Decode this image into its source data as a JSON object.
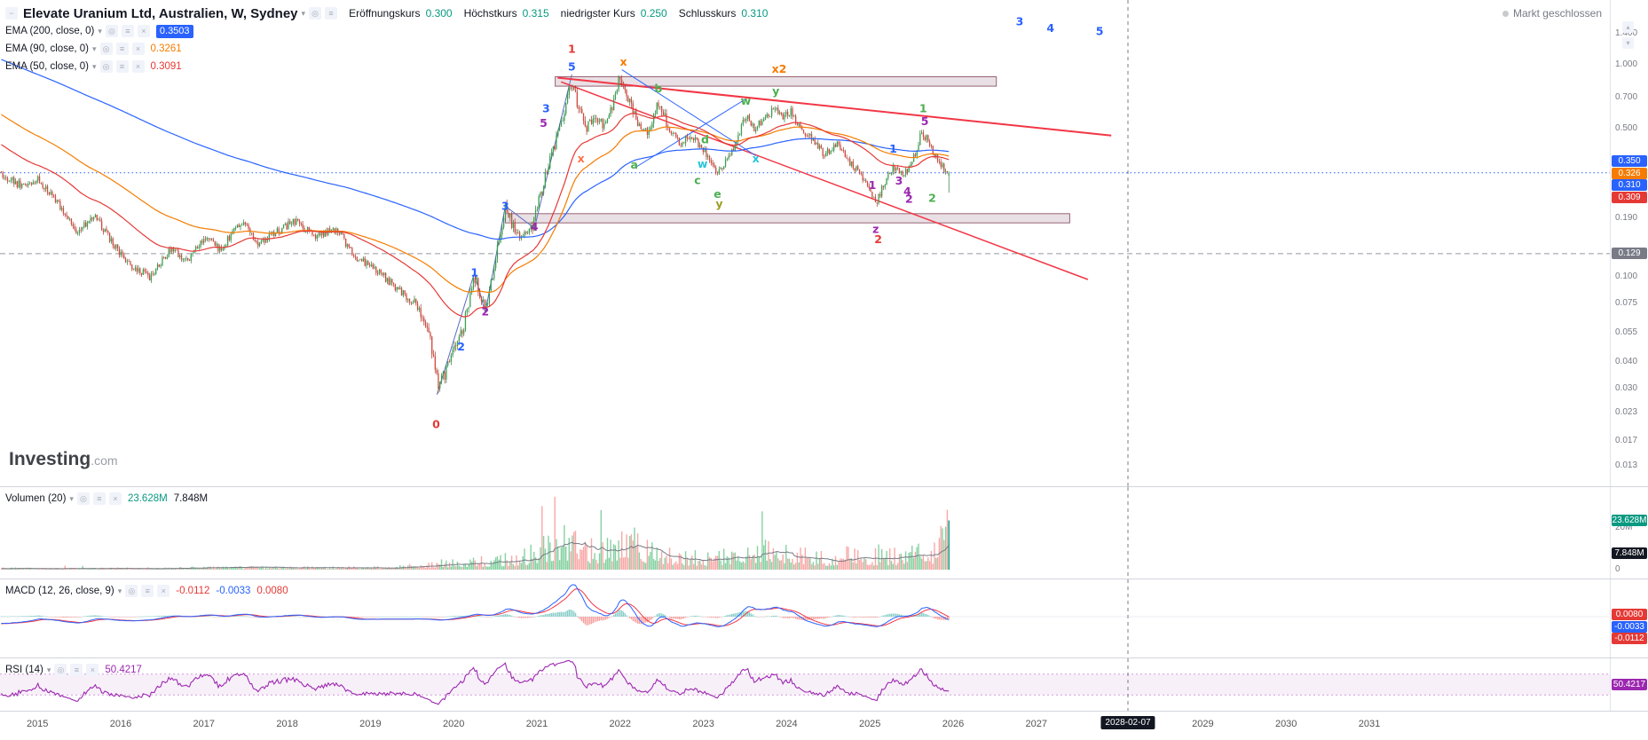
{
  "header": {
    "symbol_title": "Elevate Uranium Ltd, Australien, W, Sydney",
    "ohlc": [
      {
        "label": "Eröffnungskurs",
        "value": "0.300"
      },
      {
        "label": "Höchstkurs",
        "value": "0.315"
      },
      {
        "label": "niedrigster Kurs",
        "value": "0.250"
      },
      {
        "label": "Schlusskurs",
        "value": "0.310"
      }
    ],
    "value_color": "#089981",
    "market_status": "Markt geschlossen"
  },
  "legends": {
    "ema200": {
      "label": "EMA (200, close, 0)",
      "value": "0.3503",
      "color": "#2962ff"
    },
    "ema90": {
      "label": "EMA (90, close, 0)",
      "value": "0.3261",
      "color": "#f57c00"
    },
    "ema50": {
      "label": "EMA (50, close, 0)",
      "value": "0.3091",
      "color": "#e53935"
    },
    "volume": {
      "label": "Volumen (20)",
      "values": [
        {
          "text": "23.628M",
          "color": "#089981"
        },
        {
          "text": "7.848M",
          "color": "#131722"
        }
      ]
    },
    "macd": {
      "label": "MACD (12, 26, close, 9)",
      "values": [
        {
          "text": "-0.0112",
          "color": "#e53935"
        },
        {
          "text": "-0.0033",
          "color": "#2962ff"
        },
        {
          "text": "0.0080",
          "color": "#e53935"
        }
      ]
    },
    "rsi": {
      "label": "RSI (14)",
      "value": "50.4217",
      "color": "#9c27b0"
    }
  },
  "watermark": {
    "main": "Investing",
    "suffix": ".com"
  },
  "axes": {
    "price_ticks": [
      "1.400",
      "1.000",
      "0.700",
      "0.500",
      "0.190",
      "0.100",
      "0.075",
      "0.055",
      "0.040",
      "0.030",
      "0.023",
      "0.017",
      "0.013"
    ],
    "price_badges": [
      {
        "text": "0.350",
        "price": 0.3503,
        "color": "#2962ff"
      },
      {
        "text": "0.326",
        "price": 0.3261,
        "color": "#f57c00"
      },
      {
        "text": "0.310",
        "price": 0.31,
        "color": "#2962ff"
      },
      {
        "text": "0.309",
        "price": 0.3091,
        "color": "#e53935"
      },
      {
        "text": "0.129",
        "price": 0.129,
        "color": "#787b86"
      }
    ],
    "volume_ticks": [
      {
        "text": "20M",
        "value": 20
      },
      {
        "text": "0",
        "value": 0
      }
    ],
    "volume_badges": [
      {
        "text": "23.628M",
        "value": 23.628,
        "color": "#089981"
      },
      {
        "text": "7.848M",
        "value": 7.848,
        "color": "#131722"
      }
    ],
    "macd_badges": [
      {
        "text": "0.0080",
        "value": 0.008,
        "color": "#e53935"
      },
      {
        "text": "-0.0033",
        "value": -0.0033,
        "color": "#2962ff"
      },
      {
        "text": "-0.0112",
        "value": -0.0112,
        "color": "#e53935"
      }
    ],
    "rsi_badge": {
      "text": "50.4217",
      "value": 50.4217,
      "color": "#9c27b0"
    },
    "time_ticks": [
      "2015",
      "2016",
      "2017",
      "2018",
      "2019",
      "2020",
      "2021",
      "2022",
      "2023",
      "2024",
      "2025",
      "2026",
      "2027",
      "2029",
      "2030",
      "2031"
    ],
    "time_badge": {
      "text": "2028-02-07",
      "t": 2028.1
    }
  },
  "chart_data": {
    "type": "candlestick",
    "interval": "W",
    "scale": "log",
    "time_range": [
      2014.55,
      2033.9
    ],
    "price_range": [
      0.0104,
      2.0
    ],
    "last_candle": {
      "open": 0.3,
      "high": 0.315,
      "low": 0.25,
      "close": 0.31
    },
    "price_anchors": [
      [
        2011.0,
        2.6
      ],
      [
        2011.5,
        2.0
      ],
      [
        2012.0,
        1.45
      ],
      [
        2012.5,
        1.05
      ],
      [
        2013.0,
        0.78
      ],
      [
        2013.5,
        0.56
      ],
      [
        2014.0,
        0.42
      ],
      [
        2014.3,
        0.35
      ],
      [
        2014.6,
        0.3
      ],
      [
        2014.8,
        0.27
      ],
      [
        2015.0,
        0.29
      ],
      [
        2015.2,
        0.24
      ],
      [
        2015.45,
        0.165
      ],
      [
        2015.7,
        0.19
      ],
      [
        2015.9,
        0.145
      ],
      [
        2016.1,
        0.115
      ],
      [
        2016.35,
        0.1
      ],
      [
        2016.6,
        0.135
      ],
      [
        2016.8,
        0.12
      ],
      [
        2017.0,
        0.155
      ],
      [
        2017.2,
        0.135
      ],
      [
        2017.45,
        0.185
      ],
      [
        2017.65,
        0.145
      ],
      [
        2017.9,
        0.165
      ],
      [
        2018.1,
        0.185
      ],
      [
        2018.35,
        0.155
      ],
      [
        2018.6,
        0.17
      ],
      [
        2018.8,
        0.125
      ],
      [
        2019.0,
        0.115
      ],
      [
        2019.3,
        0.09
      ],
      [
        2019.55,
        0.075
      ],
      [
        2019.7,
        0.055
      ],
      [
        2019.82,
        0.03
      ],
      [
        2019.95,
        0.04
      ],
      [
        2020.1,
        0.055
      ],
      [
        2020.25,
        0.1
      ],
      [
        2020.38,
        0.07
      ],
      [
        2020.62,
        0.21
      ],
      [
        2020.78,
        0.155
      ],
      [
        2020.95,
        0.175
      ],
      [
        2021.1,
        0.3
      ],
      [
        2021.22,
        0.42
      ],
      [
        2021.32,
        0.6
      ],
      [
        2021.42,
        0.85
      ],
      [
        2021.5,
        0.62
      ],
      [
        2021.6,
        0.5
      ],
      [
        2021.7,
        0.6
      ],
      [
        2021.8,
        0.52
      ],
      [
        2021.9,
        0.64
      ],
      [
        2022.0,
        0.88
      ],
      [
        2022.08,
        0.72
      ],
      [
        2022.2,
        0.55
      ],
      [
        2022.32,
        0.47
      ],
      [
        2022.46,
        0.66
      ],
      [
        2022.6,
        0.5
      ],
      [
        2022.72,
        0.42
      ],
      [
        2022.85,
        0.47
      ],
      [
        2022.95,
        0.42
      ],
      [
        2023.05,
        0.37
      ],
      [
        2023.17,
        0.31
      ],
      [
        2023.3,
        0.36
      ],
      [
        2023.4,
        0.44
      ],
      [
        2023.51,
        0.58
      ],
      [
        2023.6,
        0.5
      ],
      [
        2023.72,
        0.55
      ],
      [
        2023.87,
        0.63
      ],
      [
        2023.95,
        0.56
      ],
      [
        2024.05,
        0.6
      ],
      [
        2024.15,
        0.52
      ],
      [
        2024.3,
        0.45
      ],
      [
        2024.45,
        0.38
      ],
      [
        2024.6,
        0.42
      ],
      [
        2024.75,
        0.35
      ],
      [
        2024.9,
        0.3
      ],
      [
        2025.0,
        0.26
      ],
      [
        2025.08,
        0.225
      ],
      [
        2025.18,
        0.28
      ],
      [
        2025.28,
        0.33
      ],
      [
        2025.4,
        0.3
      ],
      [
        2025.52,
        0.36
      ],
      [
        2025.62,
        0.48
      ],
      [
        2025.7,
        0.44
      ],
      [
        2025.78,
        0.37
      ],
      [
        2025.87,
        0.33
      ],
      [
        2025.955,
        0.31
      ]
    ],
    "volume_anchors": [
      [
        2011.0,
        0.4
      ],
      [
        2014.6,
        0.6
      ],
      [
        2015.5,
        0.5
      ],
      [
        2016.5,
        0.7
      ],
      [
        2017.5,
        1.0
      ],
      [
        2018.5,
        0.8
      ],
      [
        2019.3,
        1.0
      ],
      [
        2019.85,
        2.8
      ],
      [
        2020.3,
        3.5
      ],
      [
        2020.7,
        5.0
      ],
      [
        2021.0,
        7.0
      ],
      [
        2021.25,
        13.0
      ],
      [
        2021.45,
        11.0
      ],
      [
        2021.6,
        9.0
      ],
      [
        2021.8,
        8.0
      ],
      [
        2021.95,
        12.0
      ],
      [
        2022.1,
        14.0
      ],
      [
        2022.3,
        8.0
      ],
      [
        2022.5,
        7.0
      ],
      [
        2022.8,
        5.5
      ],
      [
        2023.1,
        5.0
      ],
      [
        2023.5,
        7.5
      ],
      [
        2023.9,
        8.0
      ],
      [
        2024.2,
        6.0
      ],
      [
        2024.5,
        5.0
      ],
      [
        2024.8,
        6.5
      ],
      [
        2025.1,
        5.5
      ],
      [
        2025.4,
        6.0
      ],
      [
        2025.6,
        9.0
      ],
      [
        2025.8,
        7.0
      ],
      [
        2025.955,
        23.628
      ]
    ],
    "emas": [
      {
        "period": 200,
        "color": "#2962ff",
        "last": 0.3503
      },
      {
        "period": 90,
        "color": "#f57c00",
        "last": 0.3261
      },
      {
        "period": 50,
        "color": "#e53935",
        "last": 0.3091
      }
    ],
    "zones": [
      {
        "t1": 2021.22,
        "t2": 2026.52,
        "p1": 0.792,
        "p2": 0.877
      },
      {
        "t1": 2020.62,
        "t2": 2027.4,
        "p1": 0.18,
        "p2": 0.199
      }
    ],
    "trendlines": [
      {
        "x1": 2021.25,
        "y1": 0.868,
        "x2": 2027.9,
        "y2": 0.464,
        "color": "#f23645",
        "w": 2
      },
      {
        "x1": 2021.29,
        "y1": 0.83,
        "x2": 2027.62,
        "y2": 0.0975,
        "color": "#f23645",
        "w": 1.5
      },
      {
        "x1": 2022.02,
        "y1": 0.947,
        "x2": 2023.63,
        "y2": 0.373,
        "color": "#2962ff",
        "w": 1
      },
      {
        "x1": 2022.17,
        "y1": 0.326,
        "x2": 2023.51,
        "y2": 0.69,
        "color": "#2962ff",
        "w": 1
      }
    ],
    "zigzag": {
      "color": "#5c6bc0",
      "w": 1,
      "points": [
        [
          2019.8,
          0.028
        ],
        [
          2020.25,
          0.105
        ],
        [
          2020.38,
          0.068
        ],
        [
          2020.62,
          0.216
        ],
        [
          2020.97,
          0.17
        ],
        [
          2021.42,
          0.9
        ]
      ]
    },
    "hlines": [
      {
        "price": 0.31,
        "color": "#2962ff",
        "style": "dotted"
      },
      {
        "price": 0.129,
        "color": "#9598a1",
        "style": "dashed"
      }
    ],
    "vline": {
      "t": 2028.1,
      "color": "#787b86",
      "style": "dashed",
      "label": "2028-02-07"
    },
    "wave_labels": [
      {
        "t": 2021.42,
        "p": 1.18,
        "text": "1",
        "color": "#e53935"
      },
      {
        "t": 2021.42,
        "p": 0.975,
        "text": "5",
        "color": "#2962ff"
      },
      {
        "t": 2022.04,
        "p": 1.03,
        "text": "x",
        "color": "#f57c00"
      },
      {
        "t": 2021.11,
        "p": 0.62,
        "text": "3",
        "color": "#2962ff"
      },
      {
        "t": 2021.08,
        "p": 0.53,
        "text": "5",
        "color": "#9c27b0"
      },
      {
        "t": 2022.46,
        "p": 0.77,
        "text": "b",
        "color": "#4caf50"
      },
      {
        "t": 2023.51,
        "p": 0.675,
        "text": "w",
        "color": "#4caf50"
      },
      {
        "t": 2023.87,
        "p": 0.75,
        "text": "y",
        "color": "#4caf50"
      },
      {
        "t": 2023.91,
        "p": 0.95,
        "text": "x2",
        "color": "#f57c00"
      },
      {
        "t": 2023.02,
        "p": 0.443,
        "text": "d",
        "color": "#4caf50"
      },
      {
        "t": 2021.53,
        "p": 0.361,
        "text": "x",
        "color": "#ff7043"
      },
      {
        "t": 2022.17,
        "p": 0.337,
        "text": "a",
        "color": "#4caf50"
      },
      {
        "t": 2023.63,
        "p": 0.361,
        "text": "x",
        "color": "#26c6da"
      },
      {
        "t": 2022.99,
        "p": 0.34,
        "text": "w",
        "color": "#26c6da"
      },
      {
        "t": 2022.93,
        "p": 0.285,
        "text": "c",
        "color": "#4caf50"
      },
      {
        "t": 2023.17,
        "p": 0.245,
        "text": "e",
        "color": "#4caf50"
      },
      {
        "t": 2023.19,
        "p": 0.221,
        "text": "y",
        "color": "#9e9d24"
      },
      {
        "t": 2020.62,
        "p": 0.216,
        "text": "3",
        "color": "#2962ff"
      },
      {
        "t": 2020.97,
        "p": 0.172,
        "text": "4",
        "color": "#9c27b0"
      },
      {
        "t": 2025.07,
        "p": 0.168,
        "text": "z",
        "color": "#9c27b0"
      },
      {
        "t": 2025.1,
        "p": 0.15,
        "text": "2",
        "color": "#e53935"
      },
      {
        "t": 2020.25,
        "p": 0.105,
        "text": "1",
        "color": "#2962ff"
      },
      {
        "t": 2020.38,
        "p": 0.0685,
        "text": "2",
        "color": "#9c27b0"
      },
      {
        "t": 2020.09,
        "p": 0.047,
        "text": "2",
        "color": "#2962ff"
      },
      {
        "t": 2019.79,
        "p": 0.0202,
        "text": "0",
        "color": "#e53935"
      },
      {
        "t": 2026.8,
        "p": 1.59,
        "text": "3",
        "color": "#2962ff"
      },
      {
        "t": 2027.17,
        "p": 1.48,
        "text": "4",
        "color": "#2962ff"
      },
      {
        "t": 2027.76,
        "p": 1.43,
        "text": "5",
        "color": "#2962ff"
      },
      {
        "t": 2025.64,
        "p": 0.62,
        "text": "1",
        "color": "#4caf50"
      },
      {
        "t": 2025.66,
        "p": 0.54,
        "text": "5",
        "color": "#9c27b0"
      },
      {
        "t": 2025.28,
        "p": 0.4,
        "text": "1",
        "color": "#2962ff"
      },
      {
        "t": 2025.03,
        "p": 0.27,
        "text": "1",
        "color": "#9c27b0"
      },
      {
        "t": 2025.35,
        "p": 0.283,
        "text": "3",
        "color": "#9c27b0"
      },
      {
        "t": 2025.45,
        "p": 0.253,
        "text": "4",
        "color": "#9c27b0"
      },
      {
        "t": 2025.47,
        "p": 0.233,
        "text": "2",
        "color": "#9c27b0"
      },
      {
        "t": 2025.75,
        "p": 0.235,
        "text": "2",
        "color": "#4caf50"
      }
    ],
    "colors": {
      "up": "#3b9e4e",
      "up_stroke": "#267a3a",
      "down": "#d0493d",
      "down_stroke": "#a63529"
    }
  }
}
